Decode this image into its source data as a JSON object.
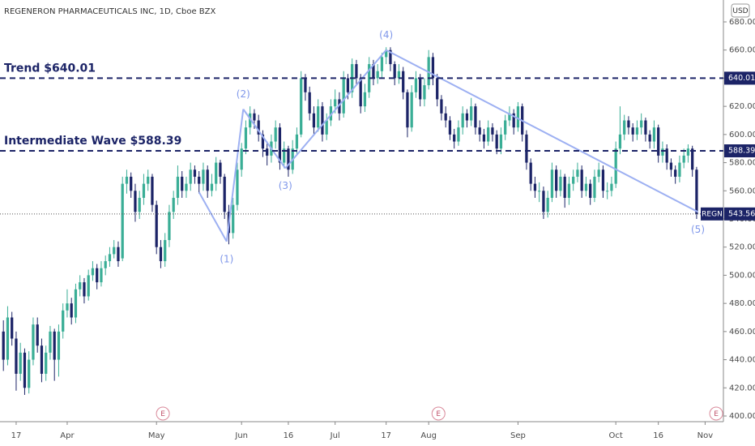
{
  "chart_data": {
    "type": "candlestick",
    "title": "REGENERON PHARMACEUTICALS INC, 1D, Cboe BZX",
    "currency": "USD",
    "up_color": "#3aae96",
    "down_color": "#1c2467",
    "ylim": [
      400,
      680
    ],
    "yticks": [
      {
        "value": 400,
        "label": "400.00"
      },
      {
        "value": 420,
        "label": "420.00"
      },
      {
        "value": 440,
        "label": "440.00"
      },
      {
        "value": 460,
        "label": "460.00"
      },
      {
        "value": 480,
        "label": "480.00"
      },
      {
        "value": 500,
        "label": "500.00"
      },
      {
        "value": 520,
        "label": "520.00"
      },
      {
        "value": 540,
        "label": "540.00"
      },
      {
        "value": 560,
        "label": "560.00"
      },
      {
        "value": 580,
        "label": "580.00"
      },
      {
        "value": 600,
        "label": "600.00"
      },
      {
        "value": 620,
        "label": "620.00"
      },
      {
        "value": 640,
        "label": "640.00"
      },
      {
        "value": 660,
        "label": "660.00"
      },
      {
        "value": 680,
        "label": "680.00"
      }
    ],
    "xlim": [
      -0.8,
      169.3
    ],
    "xticks": [
      {
        "value": 3,
        "label": "17"
      },
      {
        "value": 15,
        "label": "Apr"
      },
      {
        "value": 36,
        "label": "May"
      },
      {
        "value": 56,
        "label": "Jun"
      },
      {
        "value": 67,
        "label": "16"
      },
      {
        "value": 78,
        "label": "Jul"
      },
      {
        "value": 90,
        "label": "17"
      },
      {
        "value": 100,
        "label": "Aug"
      },
      {
        "value": 121,
        "label": "Sep"
      },
      {
        "value": 144,
        "label": "Oct"
      },
      {
        "value": 154,
        "label": "16"
      },
      {
        "value": 165,
        "label": "Nov"
      }
    ],
    "ohlc": [
      [
        460,
        468,
        432,
        440
      ],
      [
        440,
        478,
        436,
        470
      ],
      [
        470,
        474,
        450,
        455
      ],
      [
        455,
        460,
        418,
        430
      ],
      [
        430,
        452,
        425,
        445
      ],
      [
        445,
        448,
        415,
        420
      ],
      [
        420,
        446,
        416,
        440
      ],
      [
        440,
        470,
        436,
        465
      ],
      [
        465,
        470,
        445,
        450
      ],
      [
        450,
        455,
        424,
        430
      ],
      [
        430,
        450,
        425,
        445
      ],
      [
        445,
        464,
        440,
        460
      ],
      [
        460,
        462,
        425,
        440
      ],
      [
        440,
        465,
        428,
        460
      ],
      [
        460,
        480,
        455,
        475
      ],
      [
        475,
        490,
        470,
        480
      ],
      [
        480,
        484,
        465,
        470
      ],
      [
        470,
        494,
        466,
        490
      ],
      [
        490,
        500,
        485,
        495
      ],
      [
        495,
        498,
        480,
        485
      ],
      [
        485,
        504,
        482,
        500
      ],
      [
        500,
        510,
        496,
        505
      ],
      [
        505,
        508,
        490,
        495
      ],
      [
        495,
        510,
        492,
        505
      ],
      [
        505,
        514,
        500,
        510
      ],
      [
        510,
        520,
        506,
        515
      ],
      [
        515,
        525,
        512,
        520
      ],
      [
        520,
        524,
        506,
        510
      ],
      [
        512,
        570,
        510,
        565
      ],
      [
        565,
        575,
        558,
        570
      ],
      [
        570,
        573,
        555,
        560
      ],
      [
        560,
        565,
        538,
        545
      ],
      [
        545,
        560,
        540,
        555
      ],
      [
        555,
        572,
        550,
        565
      ],
      [
        565,
        575,
        560,
        570
      ],
      [
        570,
        572,
        545,
        550
      ],
      [
        550,
        553,
        515,
        520
      ],
      [
        520,
        525,
        505,
        510
      ],
      [
        510,
        530,
        506,
        525
      ],
      [
        525,
        550,
        520,
        545
      ],
      [
        545,
        560,
        540,
        555
      ],
      [
        555,
        578,
        550,
        570
      ],
      [
        570,
        574,
        555,
        560
      ],
      [
        560,
        570,
        555,
        565
      ],
      [
        565,
        580,
        560,
        575
      ],
      [
        575,
        578,
        565,
        570
      ],
      [
        570,
        574,
        558,
        565
      ],
      [
        565,
        580,
        560,
        575
      ],
      [
        575,
        578,
        555,
        560
      ],
      [
        560,
        572,
        556,
        565
      ],
      [
        565,
        584,
        560,
        580
      ],
      [
        580,
        582,
        565,
        570
      ],
      [
        570,
        572,
        540,
        545
      ],
      [
        545,
        550,
        522,
        530
      ],
      [
        530,
        555,
        526,
        550
      ],
      [
        550,
        580,
        546,
        575
      ],
      [
        575,
        594,
        570,
        590
      ],
      [
        590,
        610,
        586,
        605
      ],
      [
        605,
        620,
        600,
        615
      ],
      [
        615,
        618,
        604,
        610
      ],
      [
        610,
        614,
        595,
        600
      ],
      [
        600,
        603,
        584,
        590
      ],
      [
        590,
        595,
        578,
        585
      ],
      [
        585,
        600,
        580,
        595
      ],
      [
        595,
        610,
        590,
        605
      ],
      [
        605,
        608,
        575,
        580
      ],
      [
        580,
        595,
        576,
        590
      ],
      [
        590,
        592,
        570,
        575
      ],
      [
        575,
        596,
        572,
        590
      ],
      [
        590,
        605,
        586,
        600
      ],
      [
        600,
        645,
        598,
        640
      ],
      [
        640,
        643,
        624,
        630
      ],
      [
        630,
        634,
        610,
        615
      ],
      [
        615,
        620,
        600,
        605
      ],
      [
        605,
        625,
        602,
        620
      ],
      [
        620,
        623,
        595,
        600
      ],
      [
        600,
        615,
        596,
        610
      ],
      [
        610,
        625,
        606,
        620
      ],
      [
        620,
        632,
        615,
        625
      ],
      [
        625,
        630,
        610,
        615
      ],
      [
        615,
        645,
        612,
        640
      ],
      [
        640,
        643,
        625,
        630
      ],
      [
        630,
        654,
        626,
        650
      ],
      [
        650,
        653,
        635,
        640
      ],
      [
        640,
        643,
        615,
        620
      ],
      [
        620,
        636,
        616,
        630
      ],
      [
        630,
        655,
        626,
        650
      ],
      [
        650,
        653,
        635,
        640
      ],
      [
        640,
        650,
        636,
        645
      ],
      [
        645,
        658,
        640,
        655
      ],
      [
        655,
        662,
        650,
        660
      ],
      [
        660,
        662,
        645,
        650
      ],
      [
        650,
        652,
        635,
        640
      ],
      [
        640,
        650,
        636,
        645
      ],
      [
        645,
        648,
        625,
        630
      ],
      [
        630,
        632,
        598,
        605
      ],
      [
        605,
        635,
        602,
        630
      ],
      [
        630,
        645,
        626,
        640
      ],
      [
        640,
        643,
        620,
        625
      ],
      [
        625,
        640,
        620,
        635
      ],
      [
        635,
        660,
        632,
        655
      ],
      [
        655,
        658,
        635,
        640
      ],
      [
        640,
        643,
        620,
        625
      ],
      [
        625,
        628,
        610,
        615
      ],
      [
        615,
        620,
        605,
        610
      ],
      [
        610,
        613,
        596,
        600
      ],
      [
        600,
        604,
        590,
        595
      ],
      [
        595,
        610,
        592,
        605
      ],
      [
        605,
        620,
        600,
        615
      ],
      [
        615,
        618,
        605,
        610
      ],
      [
        610,
        626,
        606,
        620
      ],
      [
        620,
        622,
        600,
        605
      ],
      [
        605,
        610,
        595,
        600
      ],
      [
        600,
        604,
        590,
        595
      ],
      [
        595,
        610,
        592,
        605
      ],
      [
        605,
        608,
        595,
        600
      ],
      [
        600,
        603,
        586,
        590
      ],
      [
        590,
        605,
        586,
        600
      ],
      [
        600,
        614,
        596,
        610
      ],
      [
        610,
        620,
        606,
        615
      ],
      [
        615,
        618,
        600,
        605
      ],
      [
        605,
        623,
        602,
        620
      ],
      [
        620,
        622,
        595,
        600
      ],
      [
        600,
        603,
        575,
        580
      ],
      [
        580,
        583,
        560,
        565
      ],
      [
        565,
        570,
        555,
        560
      ],
      [
        560,
        566,
        552,
        560
      ],
      [
        560,
        563,
        540,
        545
      ],
      [
        545,
        560,
        541,
        555
      ],
      [
        555,
        580,
        552,
        575
      ],
      [
        575,
        578,
        555,
        560
      ],
      [
        560,
        575,
        556,
        570
      ],
      [
        570,
        572,
        548,
        555
      ],
      [
        555,
        570,
        550,
        565
      ],
      [
        565,
        575,
        560,
        570
      ],
      [
        570,
        580,
        566,
        575
      ],
      [
        575,
        578,
        555,
        560
      ],
      [
        560,
        570,
        556,
        565
      ],
      [
        565,
        568,
        550,
        555
      ],
      [
        555,
        575,
        552,
        570
      ],
      [
        570,
        580,
        566,
        575
      ],
      [
        575,
        578,
        555,
        560
      ],
      [
        560,
        566,
        554,
        560
      ],
      [
        560,
        570,
        556,
        565
      ],
      [
        565,
        595,
        562,
        590
      ],
      [
        590,
        620,
        586,
        600
      ],
      [
        600,
        614,
        596,
        610
      ],
      [
        610,
        613,
        600,
        605
      ],
      [
        605,
        608,
        595,
        600
      ],
      [
        600,
        610,
        596,
        605
      ],
      [
        605,
        615,
        600,
        610
      ],
      [
        610,
        612,
        595,
        600
      ],
      [
        600,
        603,
        590,
        595
      ],
      [
        595,
        610,
        590,
        605
      ],
      [
        605,
        607,
        580,
        585
      ],
      [
        585,
        595,
        580,
        590
      ],
      [
        590,
        593,
        575,
        580
      ],
      [
        580,
        583,
        570,
        575
      ],
      [
        575,
        578,
        565,
        570
      ],
      [
        570,
        585,
        566,
        580
      ],
      [
        580,
        590,
        576,
        585
      ],
      [
        585,
        593,
        580,
        590
      ],
      [
        590,
        592,
        570,
        575
      ],
      [
        575,
        577,
        540,
        543.56
      ]
    ],
    "levels": [
      {
        "label": "Trend $640.01",
        "value": 640.01,
        "color": "#1c2467"
      },
      {
        "label": "Intermediate Wave $588.39",
        "value": 588.39,
        "color": "#1c2467"
      }
    ],
    "last": {
      "symbol": "REGN",
      "value": 543.56
    },
    "wave": {
      "color": "#9db0f2",
      "points": [
        {
          "index": 46,
          "price": 559
        },
        {
          "index": 52.5,
          "price": 524,
          "label": "(1)"
        },
        {
          "index": 56.4,
          "price": 618,
          "label": "(2)"
        },
        {
          "index": 66.3,
          "price": 576,
          "label": "(3)"
        },
        {
          "index": 90,
          "price": 660,
          "label": "(4)"
        },
        {
          "index": 163.3,
          "price": 545,
          "label": "(5)"
        }
      ]
    },
    "events": [
      {
        "index": 37.5,
        "label": "E"
      },
      {
        "index": 102.3,
        "label": "E"
      },
      {
        "index": 167.6,
        "label": "E"
      }
    ]
  }
}
